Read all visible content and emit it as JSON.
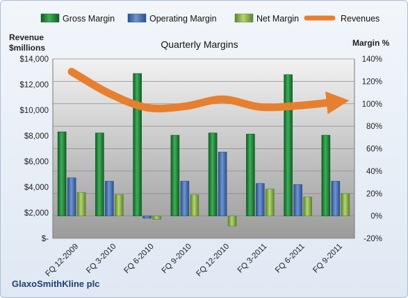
{
  "chart_data": {
    "type": "bar",
    "title": "Quarterly Margins",
    "company": "GlaxoSmithKline plc",
    "left_axis": {
      "title_lines": [
        "Revenue",
        "$millions"
      ],
      "range": [
        0,
        14000
      ],
      "ticks": [
        "$-",
        "$2,000",
        "$4,000",
        "$6,000",
        "$8,000",
        "$10,000",
        "$12,000",
        "$14,000"
      ]
    },
    "right_axis": {
      "title": "Margin %",
      "range": [
        -20,
        140
      ],
      "ticks": [
        "-20%",
        "0%",
        "20%",
        "40%",
        "60%",
        "80%",
        "100%",
        "120%",
        "140%"
      ]
    },
    "categories": [
      "FQ 12-2009",
      "FQ 3-2010",
      "FQ 6-2010",
      "FQ 9-2010",
      "FQ 12-2010",
      "FQ 3-2011",
      "FQ 6-2011",
      "FQ 9-2011"
    ],
    "series": [
      {
        "name": "Gross Margin",
        "type": "bar",
        "axis": "right",
        "color": "#1f8a3a",
        "values": [
          75,
          74,
          127,
          72,
          74,
          73,
          126,
          72
        ]
      },
      {
        "name": "Operating Margin",
        "type": "bar",
        "axis": "right",
        "color": "#3f6fb5",
        "values": [
          34,
          31,
          -2,
          31,
          57,
          29,
          28,
          31
        ]
      },
      {
        "name": "Net Margin",
        "type": "bar",
        "axis": "right",
        "color": "#8cba4a",
        "values": [
          21,
          19,
          -3,
          19,
          -9,
          24,
          17,
          20
        ]
      },
      {
        "name": "Revenues",
        "type": "line",
        "axis": "left",
        "color": "#e87f2e",
        "values": [
          13000,
          11300,
          10200,
          10300,
          10850,
          10250,
          10350,
          10650
        ]
      }
    ],
    "grid": true,
    "legend_position": "top"
  }
}
